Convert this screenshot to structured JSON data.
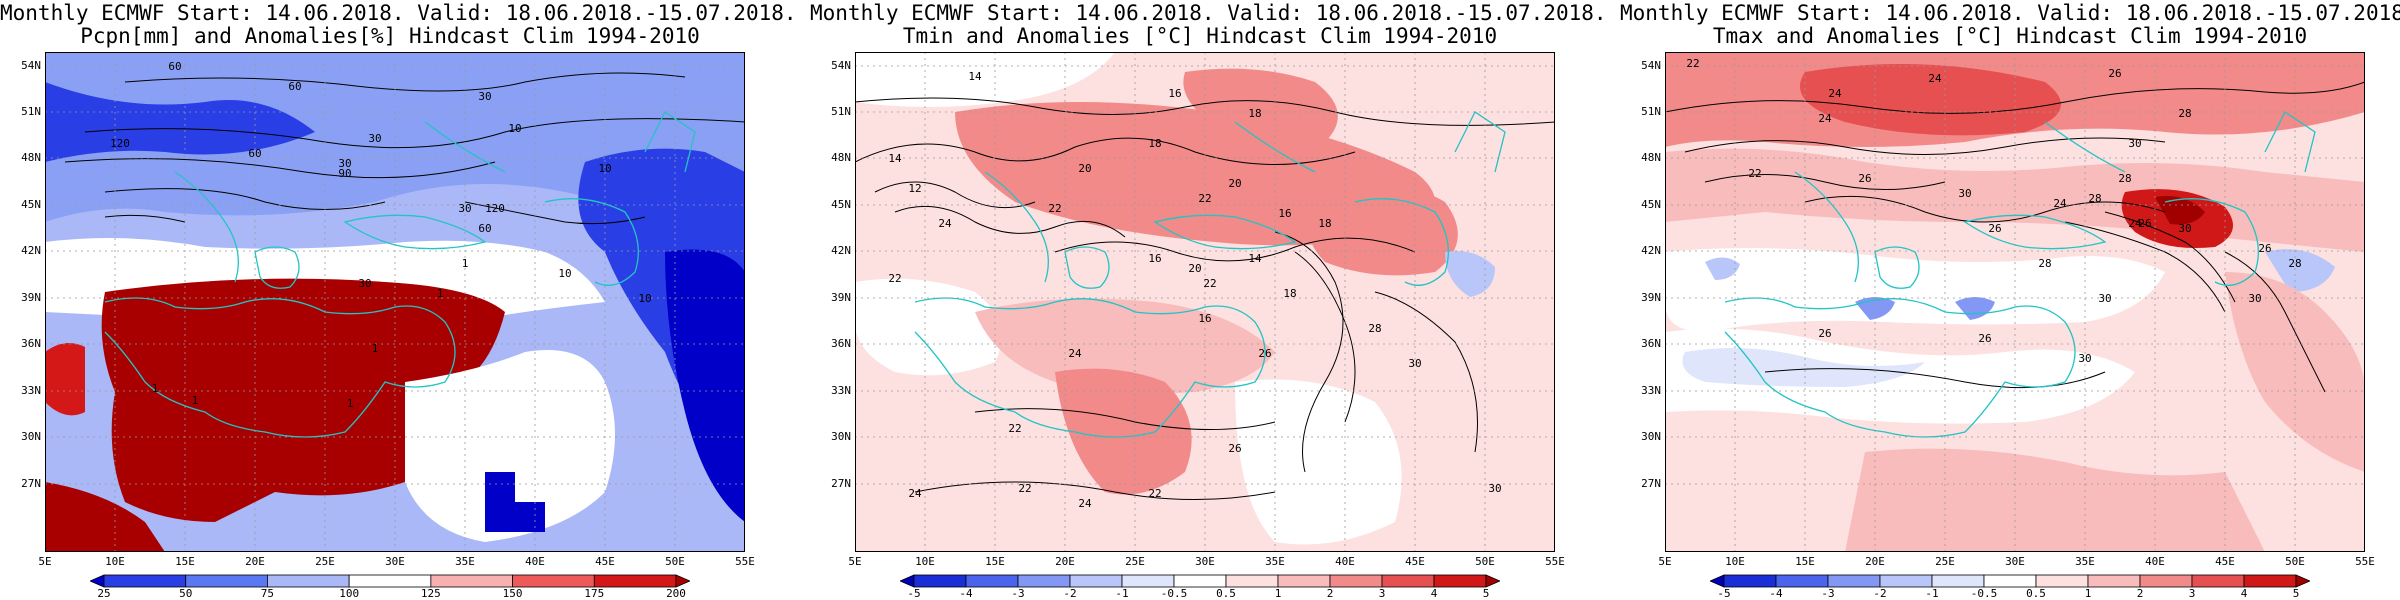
{
  "panels": [
    {
      "id": "pcpn",
      "title_line1": "Monthly ECMWF Start: 14.06.2018. Valid: 18.06.2018.-15.07.2018.",
      "title_line2": "Pcpn[mm] and Anomalies[%] Hindcast Clim 1994-2010",
      "colorbar_ticks": [
        "25",
        "50",
        "75",
        "100",
        "125",
        "150",
        "175",
        "200"
      ],
      "colorbar_colors": [
        "#0000c8",
        "#2a3ee6",
        "#5a78f2",
        "#aab8f8",
        "#ffffff",
        "#f8b0b0",
        "#ee5a5a",
        "#d41818",
        "#a80000"
      ],
      "contour_labels": [
        "60",
        "60",
        "30",
        "60",
        "90",
        "120",
        "30",
        "30",
        "10",
        "10",
        "120",
        "60",
        "30",
        "1",
        "10",
        "30",
        "1",
        "1",
        "1",
        "1",
        "1",
        "10"
      ]
    },
    {
      "id": "tmin",
      "title_line1": "Monthly ECMWF Start: 14.06.2018. Valid: 18.06.2018.-15.07.2018.",
      "title_line2": "Tmin and Anomalies [°C] Hindcast Clim 1994-2010",
      "colorbar_ticks": [
        "-5",
        "-4",
        "-3",
        "-2",
        "-1",
        "-0.5",
        "0.5",
        "1",
        "2",
        "3",
        "4",
        "5"
      ],
      "colorbar_colors": [
        "#0000b4",
        "#1a2ed8",
        "#4a64ee",
        "#8298f4",
        "#b8c6fa",
        "#dfe6fc",
        "#ffffff",
        "#fde0e0",
        "#f9bcbc",
        "#f28a8a",
        "#e65050",
        "#d01818",
        "#a00000"
      ],
      "contour_labels": [
        "14",
        "16",
        "18",
        "14",
        "12",
        "18",
        "20",
        "22",
        "20",
        "16",
        "18",
        "22",
        "24",
        "14",
        "16",
        "22",
        "18",
        "16",
        "20",
        "22",
        "24",
        "30",
        "26",
        "22",
        "24",
        "22",
        "24",
        "22",
        "26",
        "28",
        "30"
      ]
    },
    {
      "id": "tmax",
      "title_line1": "Monthly ECMWF Start: 14.06.2018. Valid: 18.06.2018.-15.07.2018.",
      "title_line2": "Tmax and Anomalies [°C] Hindcast Clim 1994-2010",
      "colorbar_ticks": [
        "-5",
        "-4",
        "-3",
        "-2",
        "-1",
        "-0.5",
        "0.5",
        "1",
        "2",
        "3",
        "4",
        "5"
      ],
      "colorbar_colors": [
        "#0000b4",
        "#1a2ed8",
        "#4a64ee",
        "#8298f4",
        "#b8c6fa",
        "#dfe6fc",
        "#ffffff",
        "#fde0e0",
        "#f9bcbc",
        "#f28a8a",
        "#e65050",
        "#d01818",
        "#a00000"
      ],
      "contour_labels": [
        "22",
        "24",
        "24",
        "26",
        "28",
        "30",
        "24",
        "22",
        "26",
        "30",
        "28",
        "24",
        "28",
        "26",
        "28",
        "30",
        "26",
        "30",
        "26",
        "26",
        "30",
        "26",
        "28",
        "24",
        "30"
      ]
    }
  ],
  "latitude_labels": [
    "54N",
    "51N",
    "48N",
    "45N",
    "42N",
    "39N",
    "36N",
    "33N",
    "30N",
    "27N"
  ],
  "longitude_labels": [
    "5E",
    "10E",
    "15E",
    "20E",
    "25E",
    "30E",
    "35E",
    "40E",
    "45E",
    "50E",
    "55E"
  ],
  "colors": {
    "coastline": "#22c4c4",
    "contour": "#000000",
    "grid": "#999999"
  }
}
